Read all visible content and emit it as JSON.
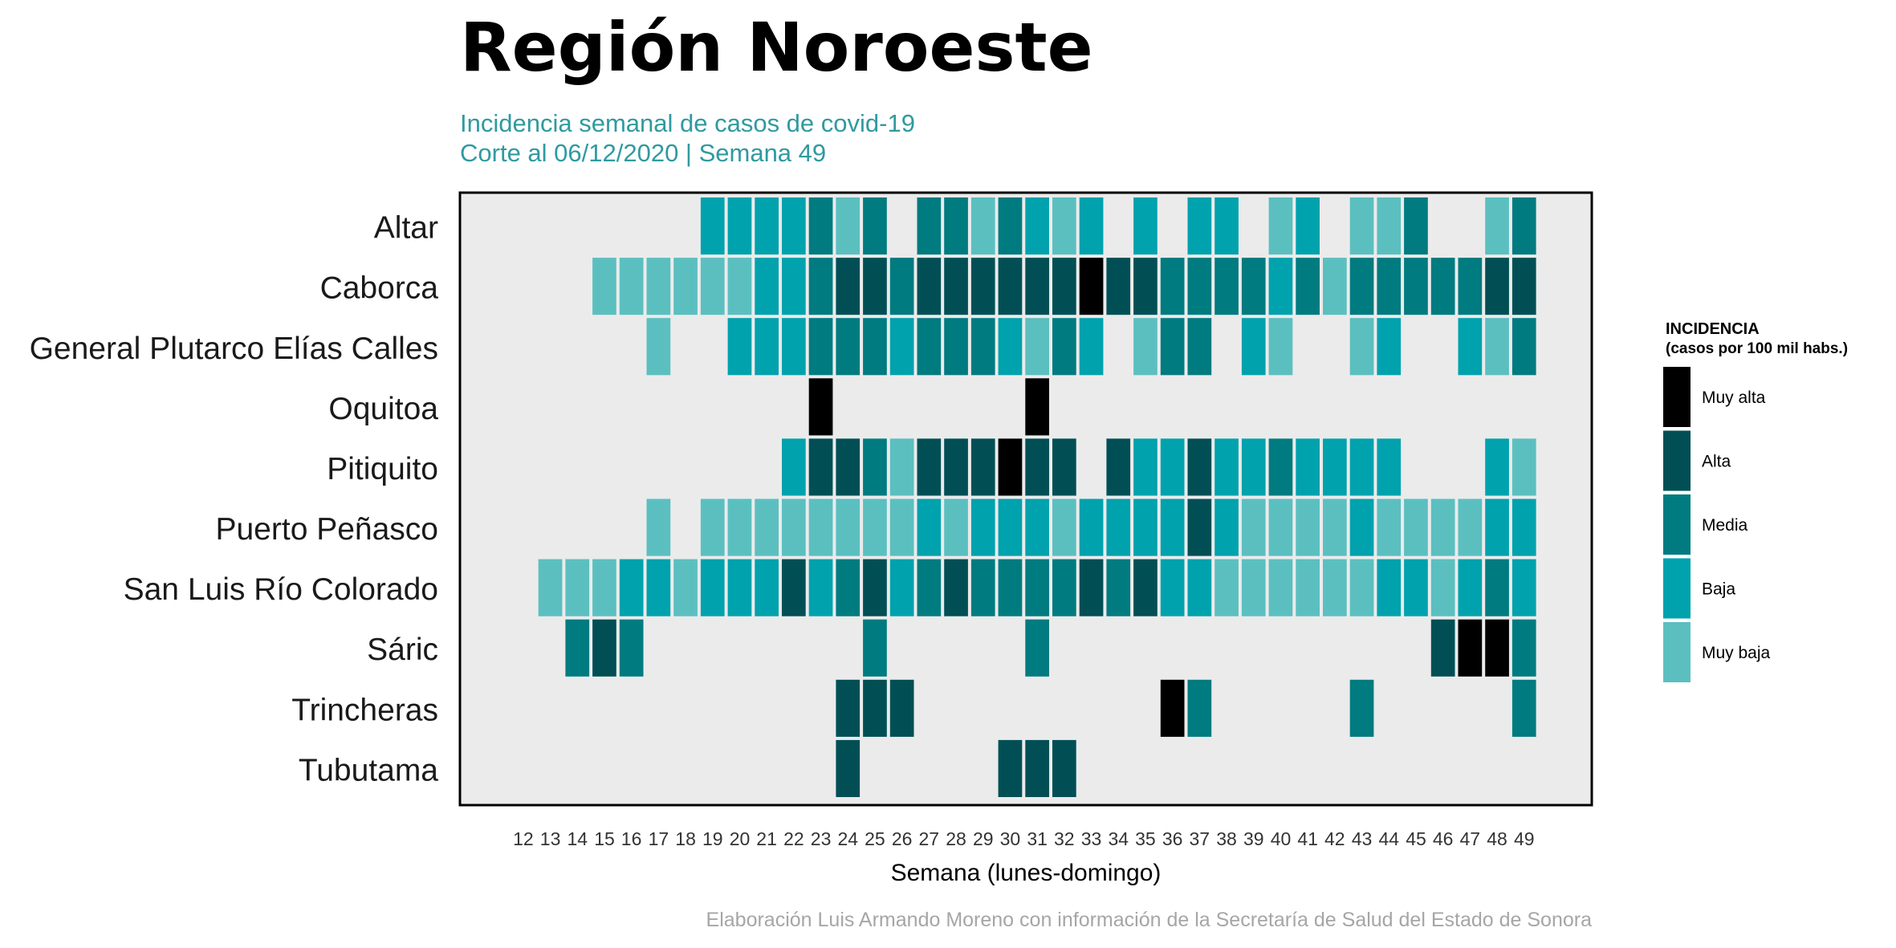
{
  "chart_data": {
    "type": "heatmap",
    "title": "Región Noroeste",
    "subtitle_lines": [
      "Incidencia semanal de casos de covid-19",
      "Corte al 06/12/2020 | Semana 49"
    ],
    "xlabel": "Semana (lunes-domingo)",
    "caption": "Elaboración Luis Armando Moreno con información de la Secretaría de Salud del Estado de Sonora",
    "x": [
      12,
      13,
      14,
      15,
      16,
      17,
      18,
      19,
      20,
      21,
      22,
      23,
      24,
      25,
      26,
      27,
      28,
      29,
      30,
      31,
      32,
      33,
      34,
      35,
      36,
      37,
      38,
      39,
      40,
      41,
      42,
      43,
      44,
      45,
      46,
      47,
      48,
      49
    ],
    "y": [
      "Altar",
      "Caborca",
      "General Plutarco Elías Calles",
      "Oquitoa",
      "Pitiquito",
      "Puerto Peñasco",
      "San Luis Río Colorado",
      "Sáric",
      "Trincheras",
      "Tubutama"
    ],
    "level_scale": "0 = sin casos, 1 = Muy baja, 2 = Baja, 3 = Media, 4 = Alta, 5 = Muy alta",
    "values": [
      [
        0,
        0,
        0,
        0,
        0,
        0,
        0,
        2,
        2,
        2,
        2,
        3,
        1,
        3,
        0,
        3,
        3,
        1,
        3,
        2,
        1,
        2,
        0,
        2,
        0,
        2,
        2,
        0,
        1,
        2,
        0,
        1,
        1,
        3,
        0,
        0,
        1,
        3
      ],
      [
        0,
        0,
        0,
        1,
        1,
        1,
        1,
        1,
        1,
        2,
        2,
        3,
        4,
        4,
        3,
        4,
        4,
        4,
        4,
        4,
        4,
        5,
        4,
        4,
        3,
        3,
        3,
        3,
        2,
        3,
        1,
        3,
        3,
        3,
        3,
        3,
        4,
        4
      ],
      [
        0,
        0,
        0,
        0,
        0,
        1,
        0,
        0,
        2,
        2,
        2,
        3,
        3,
        3,
        2,
        3,
        3,
        3,
        2,
        1,
        3,
        2,
        0,
        1,
        3,
        3,
        0,
        2,
        1,
        0,
        0,
        1,
        2,
        0,
        0,
        2,
        1,
        3
      ],
      [
        0,
        0,
        0,
        0,
        0,
        0,
        0,
        0,
        0,
        0,
        0,
        5,
        0,
        0,
        0,
        0,
        0,
        0,
        0,
        5,
        0,
        0,
        0,
        0,
        0,
        0,
        0,
        0,
        0,
        0,
        0,
        0,
        0,
        0,
        0,
        0,
        0,
        0
      ],
      [
        0,
        0,
        0,
        0,
        0,
        0,
        0,
        0,
        0,
        0,
        2,
        4,
        4,
        3,
        1,
        4,
        4,
        4,
        5,
        4,
        4,
        0,
        4,
        2,
        2,
        4,
        2,
        2,
        3,
        2,
        2,
        2,
        2,
        0,
        0,
        0,
        2,
        1
      ],
      [
        0,
        0,
        0,
        0,
        0,
        1,
        0,
        1,
        1,
        1,
        1,
        1,
        1,
        1,
        1,
        2,
        1,
        2,
        2,
        2,
        1,
        2,
        2,
        2,
        2,
        4,
        2,
        1,
        1,
        1,
        1,
        2,
        1,
        1,
        1,
        1,
        2,
        2
      ],
      [
        0,
        1,
        1,
        1,
        2,
        2,
        1,
        2,
        2,
        2,
        4,
        2,
        3,
        4,
        2,
        3,
        4,
        3,
        3,
        3,
        3,
        4,
        3,
        4,
        2,
        2,
        1,
        1,
        1,
        1,
        1,
        1,
        2,
        2,
        1,
        2,
        3,
        2
      ],
      [
        0,
        0,
        3,
        4,
        3,
        0,
        0,
        0,
        0,
        0,
        0,
        0,
        0,
        3,
        0,
        0,
        0,
        0,
        0,
        3,
        0,
        0,
        0,
        0,
        0,
        0,
        0,
        0,
        0,
        0,
        0,
        0,
        0,
        0,
        4,
        5,
        5,
        3
      ],
      [
        0,
        0,
        0,
        0,
        0,
        0,
        0,
        0,
        0,
        0,
        0,
        0,
        4,
        4,
        4,
        0,
        0,
        0,
        0,
        0,
        0,
        0,
        0,
        0,
        5,
        3,
        0,
        0,
        0,
        0,
        0,
        3,
        0,
        0,
        0,
        0,
        0,
        3
      ],
      [
        0,
        0,
        0,
        0,
        0,
        0,
        0,
        0,
        0,
        0,
        0,
        0,
        4,
        0,
        0,
        0,
        0,
        0,
        4,
        4,
        4,
        0,
        0,
        0,
        0,
        0,
        0,
        0,
        0,
        0,
        0,
        0,
        0,
        0,
        0,
        0,
        0,
        0
      ]
    ],
    "legend_title": "INCIDENCIA",
    "legend_subtitle": "(casos por 100 mil habs.)",
    "legend": [
      {
        "label": "Muy alta",
        "level": 5,
        "color": "#000000"
      },
      {
        "label": "Alta",
        "level": 4,
        "color": "#014f55"
      },
      {
        "label": "Media",
        "level": 3,
        "color": "#007b80"
      },
      {
        "label": "Baja",
        "level": 2,
        "color": "#00a2ad"
      },
      {
        "label": "Muy baja",
        "level": 1,
        "color": "#5bbfc0"
      }
    ],
    "empty_color": "#ebebeb",
    "legend_placement": "right",
    "grid": false
  }
}
